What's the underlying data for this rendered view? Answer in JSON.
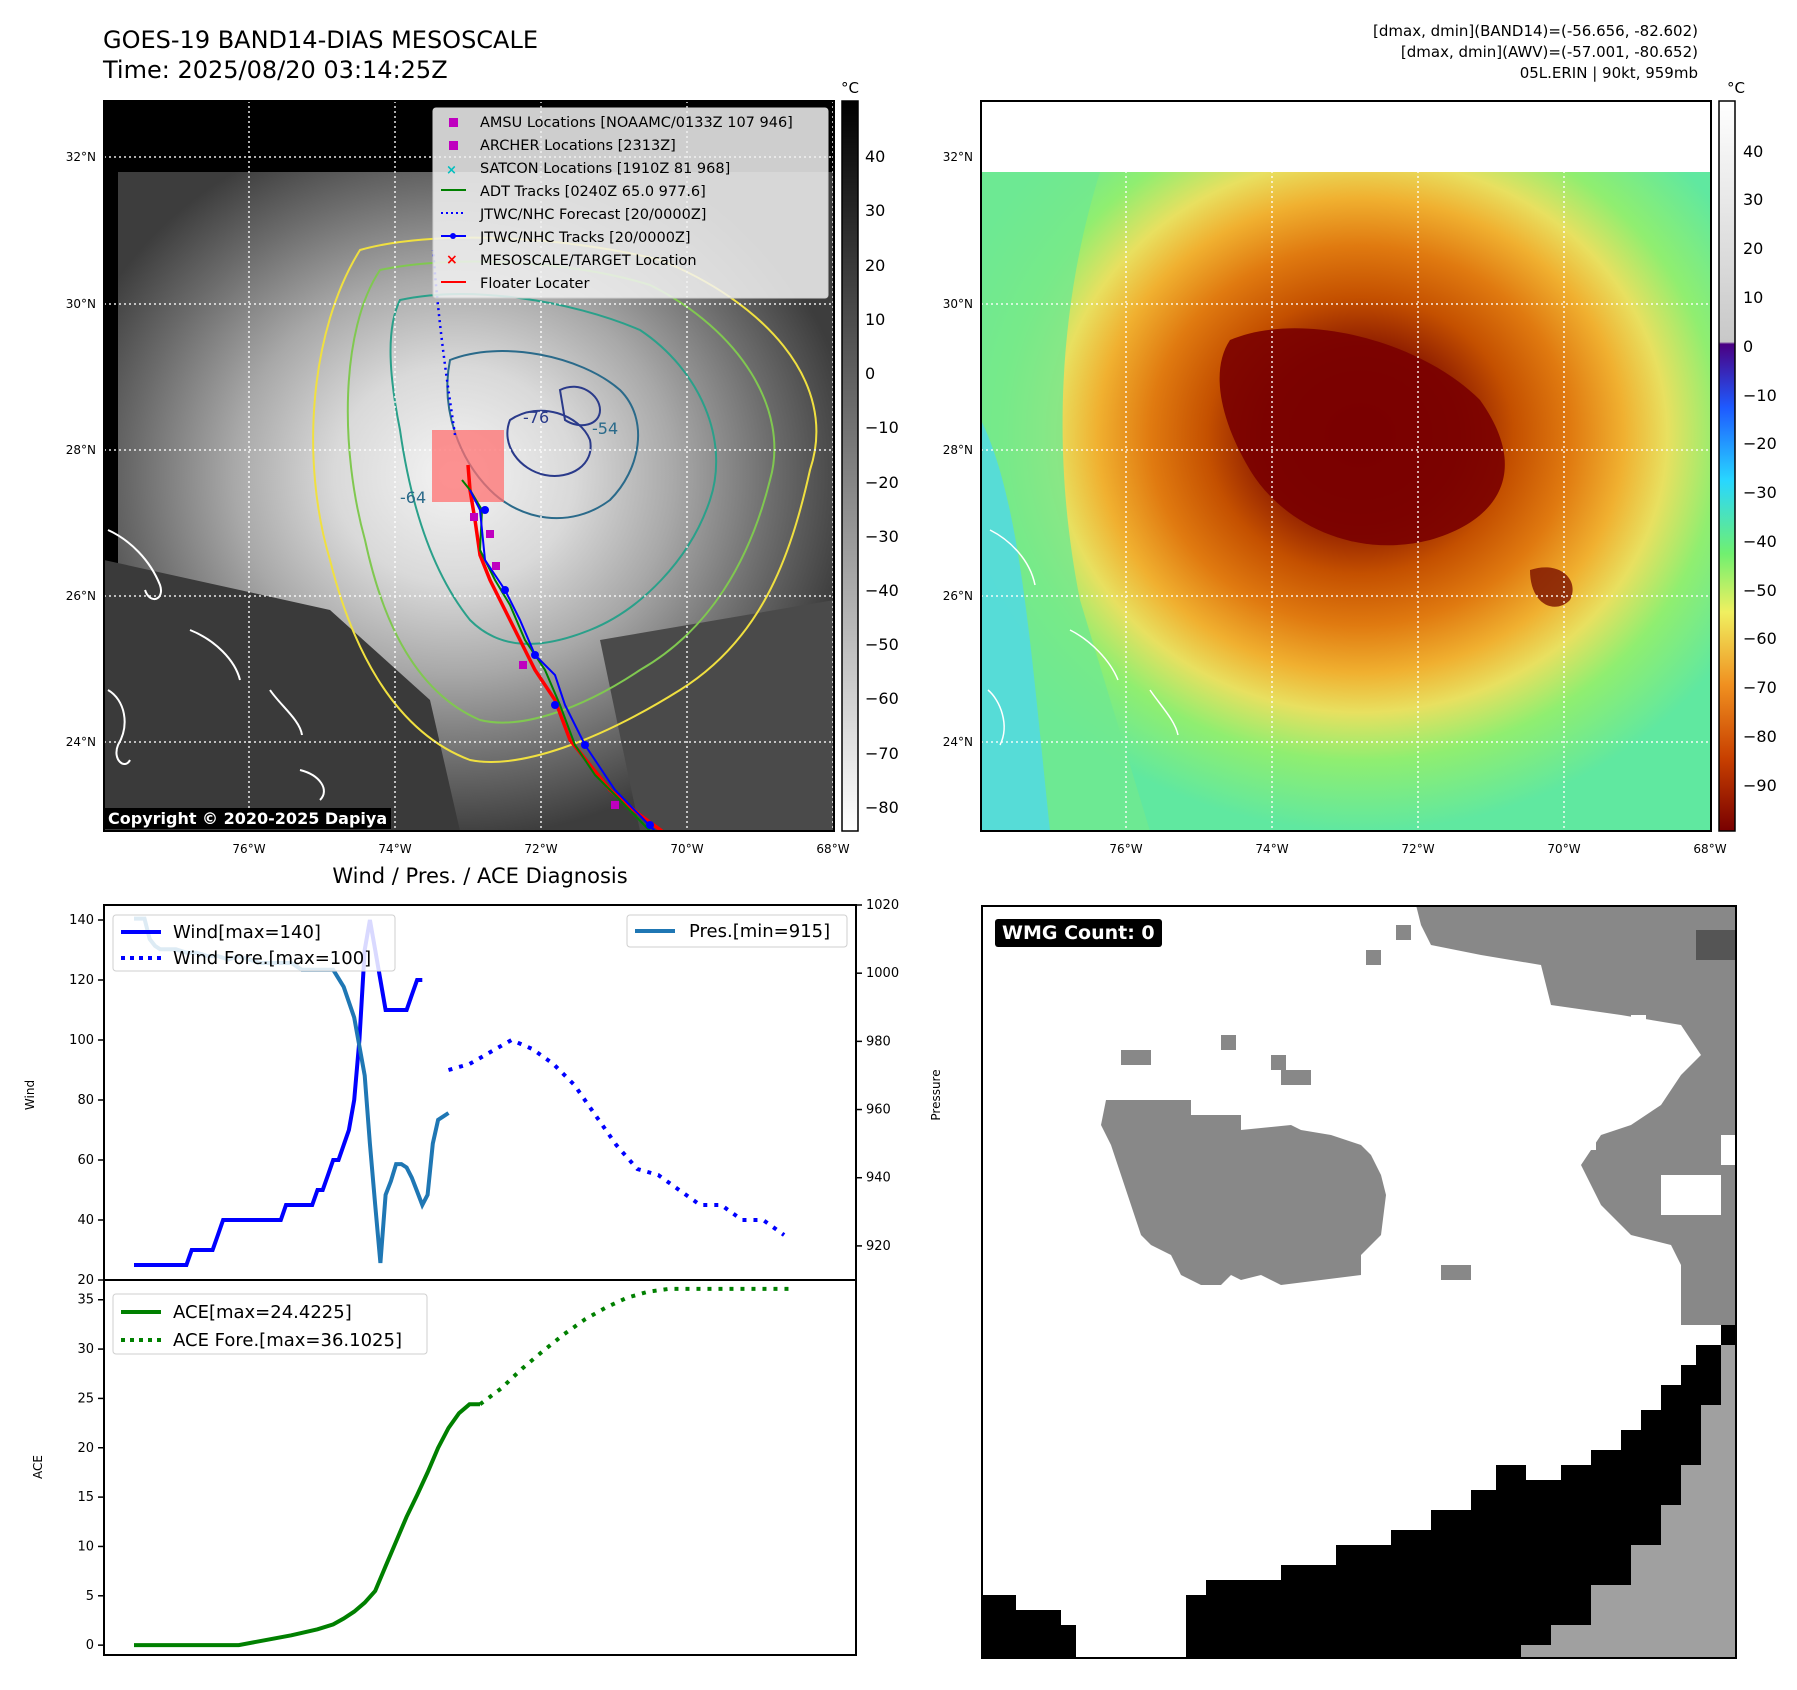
{
  "header": {
    "title": "GOES-19 BAND14-DIAS MESOSCALE",
    "time": "Time: 2025/08/20 03:14:25Z",
    "band14_range": "[dmax, dmin](BAND14)=(-56.656, -82.602)",
    "awv_range": "[dmax, dmin](AWV)=(-57.001, -80.652)",
    "storm": "05L.ERIN | 90kt, 959mb"
  },
  "maps": {
    "lat_ticks": [
      "32°N",
      "30°N",
      "28°N",
      "26°N",
      "24°N"
    ],
    "lon_ticks": [
      "76°W",
      "74°W",
      "72°W",
      "70°W",
      "68°W"
    ],
    "unit": "°C",
    "left_colorbar_ticks": [
      "40",
      "30",
      "20",
      "10",
      "0",
      "−10",
      "−20",
      "−30",
      "−40",
      "−50",
      "−60",
      "−70",
      "−80"
    ],
    "right_colorbar_ticks": [
      "40",
      "30",
      "20",
      "10",
      "0",
      "−10",
      "−20",
      "−30",
      "−40",
      "−50",
      "−60",
      "−70",
      "−80",
      "−90"
    ],
    "contour_labels": [
      "-76",
      "-54",
      "-64"
    ],
    "copyright": "Copyright © 2020-2025 Dapiya",
    "legend": [
      {
        "label": "AMSU Locations [NOAAMC/0133Z 107 946]",
        "marker": "square",
        "color": "#bf00bf"
      },
      {
        "label": "ARCHER Locations [2313Z]",
        "marker": "square",
        "color": "#bf00bf"
      },
      {
        "label": "SATCON Locations [1910Z 81 968]",
        "marker": "x",
        "color": "#00bfbf"
      },
      {
        "label": "ADT Tracks [0240Z 65.0 977.6]",
        "marker": "line",
        "color": "#008000"
      },
      {
        "label": "JTWC/NHC Forecast [20/0000Z]",
        "marker": "dotted",
        "color": "#0000ff"
      },
      {
        "label": "JTWC/NHC Tracks [20/0000Z]",
        "marker": "line-dot",
        "color": "#0000ff"
      },
      {
        "label": "MESOSCALE/TARGET Location",
        "marker": "x",
        "color": "#ff0000"
      },
      {
        "label": "Floater Locater",
        "marker": "line",
        "color": "#ff0000"
      }
    ]
  },
  "wind_panel_title": "Wind / Pres. / ACE Diagnosis",
  "wmg_label": "WMG Count: 0",
  "chart_data": [
    {
      "type": "line",
      "title": "Wind / Pres. / ACE Diagnosis",
      "ylabel": "Wind",
      "y2label": "Pressure",
      "ylim": [
        20,
        145
      ],
      "y2lim": [
        910,
        1020
      ],
      "yticks": [
        "140",
        "120",
        "100",
        "80",
        "60",
        "40",
        "20"
      ],
      "y2ticks": [
        "1020",
        "1000",
        "980",
        "960",
        "940",
        "920"
      ],
      "series": [
        {
          "name": "Wind[max=140]",
          "axis": "left",
          "color": "#0000ff",
          "style": "solid",
          "x": [
            0,
            1,
            2,
            3,
            4,
            5,
            6,
            7,
            8,
            9,
            10,
            11,
            12,
            13,
            14,
            15,
            16,
            17,
            18,
            19,
            20,
            21,
            22,
            23,
            24,
            25,
            26,
            27,
            28,
            29,
            30,
            31,
            32,
            33,
            34,
            35,
            36,
            37,
            38,
            39,
            40,
            41,
            42,
            43,
            44,
            45,
            46,
            47,
            48,
            49,
            50,
            51,
            52,
            53,
            54,
            55
          ],
          "values": [
            25,
            25,
            25,
            25,
            25,
            25,
            25,
            25,
            25,
            25,
            25,
            30,
            30,
            30,
            30,
            30,
            35,
            40,
            40,
            40,
            40,
            40,
            40,
            40,
            40,
            40,
            40,
            40,
            40,
            45,
            45,
            45,
            45,
            45,
            45,
            50,
            50,
            55,
            60,
            60,
            65,
            70,
            80,
            100,
            130,
            140,
            130,
            120,
            110,
            110,
            110,
            110,
            110,
            115,
            120,
            120
          ]
        },
        {
          "name": "Wind Fore.[max=100]",
          "axis": "left",
          "color": "#0000ff",
          "style": "dotted",
          "x": [
            60,
            64,
            68,
            72,
            76,
            80,
            84,
            88,
            92,
            96,
            100,
            104,
            108,
            112,
            116,
            120,
            124
          ],
          "values": [
            90,
            92,
            96,
            100,
            97,
            92,
            85,
            75,
            65,
            57,
            55,
            50,
            45,
            45,
            40,
            40,
            35
          ]
        },
        {
          "name": "Pres.[min=915]",
          "axis": "right",
          "color": "#1f77b4",
          "style": "solid",
          "x": [
            0,
            2,
            3,
            4,
            5,
            6,
            8,
            10,
            12,
            14,
            16,
            18,
            20,
            22,
            24,
            26,
            28,
            30,
            32,
            34,
            36,
            38,
            40,
            42,
            44,
            45,
            46,
            47,
            48,
            49,
            50,
            51,
            52,
            53,
            54,
            55,
            56,
            57,
            58,
            59,
            60
          ],
          "values": [
            1016,
            1016,
            1010,
            1008,
            1007,
            1007,
            1007,
            1006,
            1006,
            1005,
            1005,
            1004,
            1005,
            1004,
            1003,
            1003,
            1003,
            1003,
            1001,
            1001,
            1001,
            1001,
            996,
            987,
            970,
            950,
            932,
            915,
            935,
            939,
            944,
            944,
            943,
            940,
            936,
            932,
            935,
            950,
            957,
            958,
            959
          ]
        },
        {
          "name": "ACE[max=24.4225]",
          "axis": "ace",
          "color": "#008000",
          "style": "solid"
        },
        {
          "name": "ACE Fore.[max=36.1025]",
          "axis": "ace",
          "color": "#008000",
          "style": "dotted"
        }
      ],
      "legend": [
        "Wind[max=140]",
        "Wind Fore.[max=100]",
        "Pres.[min=915]"
      ]
    },
    {
      "type": "line",
      "ylabel": "ACE",
      "ylim": [
        -1,
        37
      ],
      "yticks": [
        "35",
        "30",
        "25",
        "20",
        "15",
        "10",
        "5",
        "0"
      ],
      "series": [
        {
          "name": "ACE[max=24.4225]",
          "color": "#008000",
          "style": "solid",
          "x": [
            0,
            5,
            10,
            15,
            20,
            25,
            30,
            35,
            38,
            40,
            42,
            44,
            46,
            48,
            50,
            52,
            54,
            56,
            58,
            60,
            62,
            64,
            66
          ],
          "values": [
            0,
            0,
            0,
            0,
            0,
            0.5,
            1,
            1.6,
            2.1,
            2.7,
            3.4,
            4.3,
            5.5,
            8,
            10.5,
            13,
            15.2,
            17.5,
            20,
            22,
            23.5,
            24.4,
            24.4
          ]
        },
        {
          "name": "ACE Fore.[max=36.1025]",
          "color": "#008000",
          "style": "dotted",
          "x": [
            66,
            70,
            74,
            78,
            82,
            86,
            90,
            94,
            98,
            102,
            106,
            110,
            114,
            118,
            122,
            126
          ],
          "values": [
            24.4,
            26,
            28,
            29.8,
            31.5,
            33,
            34.2,
            35.2,
            35.8,
            36.1,
            36.1,
            36.1,
            36.1,
            36.1,
            36.1,
            36.1
          ]
        }
      ],
      "legend": [
        "ACE[max=24.4225]",
        "ACE Fore.[max=36.1025]"
      ]
    }
  ]
}
